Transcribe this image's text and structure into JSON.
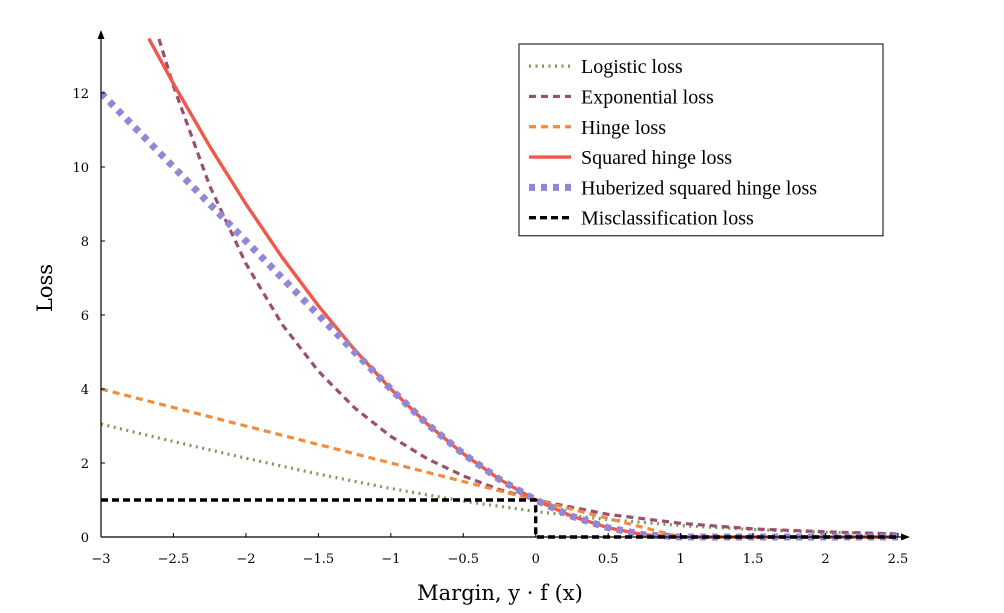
{
  "chart_data": {
    "type": "line",
    "title": "",
    "xlabel": "Margin, y · f (x)",
    "ylabel": "Loss",
    "xlim": [
      -3,
      2.5
    ],
    "ylim": [
      0,
      13.5
    ],
    "x_ticks": [
      -3,
      -2.5,
      -2,
      -1.5,
      -1,
      -0.5,
      0,
      0.5,
      1,
      1.5,
      2,
      2.5
    ],
    "x_tick_labels": [
      "−3",
      "−2.5",
      "−2",
      "−1.5",
      "−1",
      "−0.5",
      "0",
      "0.5",
      "1",
      "1.5",
      "2",
      "2.5"
    ],
    "y_ticks": [
      0,
      2,
      4,
      6,
      8,
      10,
      12
    ],
    "y_tick_labels": [
      "0",
      "2",
      "4",
      "6",
      "8",
      "10",
      "12"
    ],
    "grid": false,
    "legend_position": "top-right",
    "series": [
      {
        "name": "Logistic loss",
        "color": "#7a9a5b",
        "style": "dotted",
        "x": [
          -3,
          -2.5,
          -2,
          -1.5,
          -1,
          -0.5,
          0,
          0.5,
          1,
          1.5,
          2,
          2.5
        ],
        "y": [
          3.05,
          2.58,
          2.13,
          1.7,
          1.31,
          0.97,
          0.69,
          0.47,
          0.31,
          0.2,
          0.13,
          0.08
        ]
      },
      {
        "name": "Exponential loss",
        "color": "#9c4e6e",
        "style": "dashed",
        "x": [
          -2.6,
          -2.5,
          -2.25,
          -2,
          -1.75,
          -1.5,
          -1.25,
          -1,
          -0.75,
          -0.5,
          -0.25,
          0,
          0.5,
          1,
          1.5,
          2,
          2.5
        ],
        "y": [
          13.46,
          12.18,
          9.49,
          7.39,
          5.75,
          4.48,
          3.49,
          2.72,
          2.12,
          1.65,
          1.28,
          1.0,
          0.61,
          0.37,
          0.22,
          0.14,
          0.08
        ]
      },
      {
        "name": "Hinge loss",
        "color": "#f08c3c",
        "style": "dashed",
        "x": [
          -3,
          -2.5,
          -2,
          -1.5,
          -1,
          -0.5,
          0,
          0.5,
          1,
          1.5,
          2,
          2.5
        ],
        "y": [
          4,
          3.5,
          3,
          2.5,
          2,
          1.5,
          1,
          0.5,
          0,
          0,
          0,
          0
        ]
      },
      {
        "name": "Squared hinge loss",
        "color": "#f0584a",
        "style": "solid",
        "x": [
          -2.67,
          -2.5,
          -2.25,
          -2,
          -1.75,
          -1.5,
          -1.25,
          -1,
          -0.75,
          -0.5,
          -0.25,
          0,
          0.25,
          0.5,
          0.75,
          1,
          1.5,
          2,
          2.5
        ],
        "y": [
          13.47,
          12.25,
          10.56,
          9,
          7.56,
          6.25,
          5.06,
          4,
          3.06,
          2.25,
          1.56,
          1.0,
          0.56,
          0.25,
          0.06,
          0,
          0,
          0,
          0
        ]
      },
      {
        "name": "Huberized squared hinge loss",
        "color": "#8f88d6",
        "style": "dotted-thick",
        "x": [
          -3,
          -2.5,
          -2,
          -1.5,
          -1,
          -0.75,
          -0.5,
          -0.25,
          0,
          0.25,
          0.5,
          0.75,
          1,
          1.5,
          2,
          2.5
        ],
        "y": [
          12,
          10,
          8,
          6,
          4,
          3.06,
          2.25,
          1.56,
          1.0,
          0.56,
          0.25,
          0.06,
          0,
          0,
          0,
          0
        ]
      },
      {
        "name": "Misclassification loss",
        "color": "#000000",
        "style": "dashed-thick",
        "x": [
          -3,
          0,
          0,
          2.5
        ],
        "y": [
          1,
          1,
          0,
          0
        ]
      }
    ]
  }
}
